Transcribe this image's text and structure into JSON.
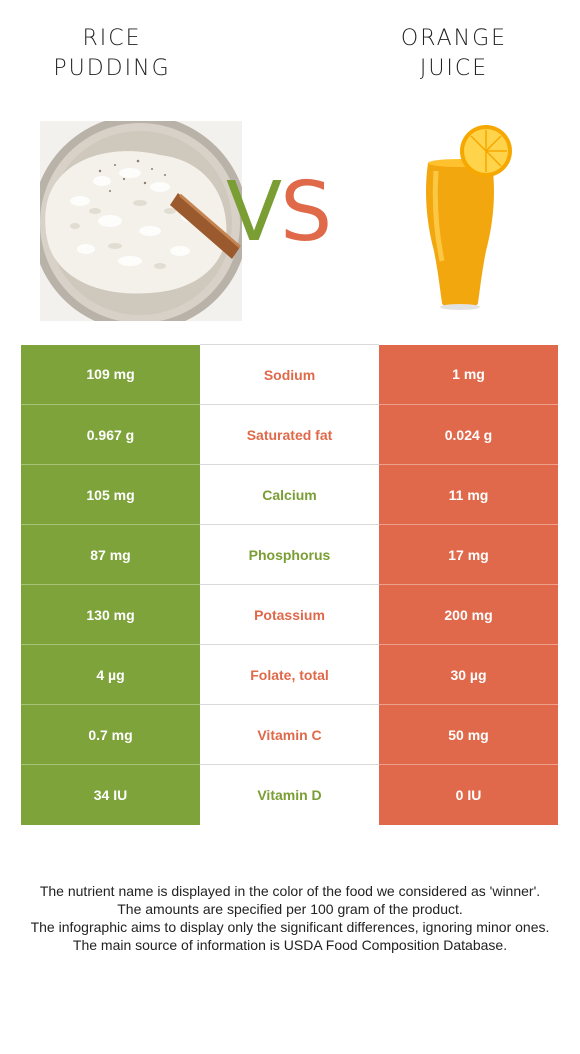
{
  "header": {
    "left_title_line1": "RICE",
    "left_title_line2": "PUDDING",
    "right_title_line1": "ORANGE",
    "right_title_line2": "JUICE",
    "vs_v": "V",
    "vs_s": "S"
  },
  "colors": {
    "left_food": "#7ea33a",
    "right_food": "#e1694b"
  },
  "rows": [
    {
      "left": "109 mg",
      "nutrient": "Sodium",
      "right": "1 mg",
      "winner": "right"
    },
    {
      "left": "0.967 g",
      "nutrient": "Saturated fat",
      "right": "0.024 g",
      "winner": "right"
    },
    {
      "left": "105 mg",
      "nutrient": "Calcium",
      "right": "11 mg",
      "winner": "left"
    },
    {
      "left": "87 mg",
      "nutrient": "Phosphorus",
      "right": "17 mg",
      "winner": "left"
    },
    {
      "left": "130 mg",
      "nutrient": "Potassium",
      "right": "200 mg",
      "winner": "right"
    },
    {
      "left": "4 µg",
      "nutrient": "Folate, total",
      "right": "30 µg",
      "winner": "right"
    },
    {
      "left": "0.7 mg",
      "nutrient": "Vitamin C",
      "right": "50 mg",
      "winner": "right"
    },
    {
      "left": "34 IU",
      "nutrient": "Vitamin D",
      "right": "0 IU",
      "winner": "left"
    }
  ],
  "footnote": {
    "line1": "The nutrient name is displayed in the color of the food we considered as 'winner'.",
    "line2": "The amounts are specified per 100 gram of the product.",
    "line3": "The infographic aims to display only the significant differences, ignoring minor ones.",
    "line4": "The main source of information is USDA Food Composition Database."
  }
}
